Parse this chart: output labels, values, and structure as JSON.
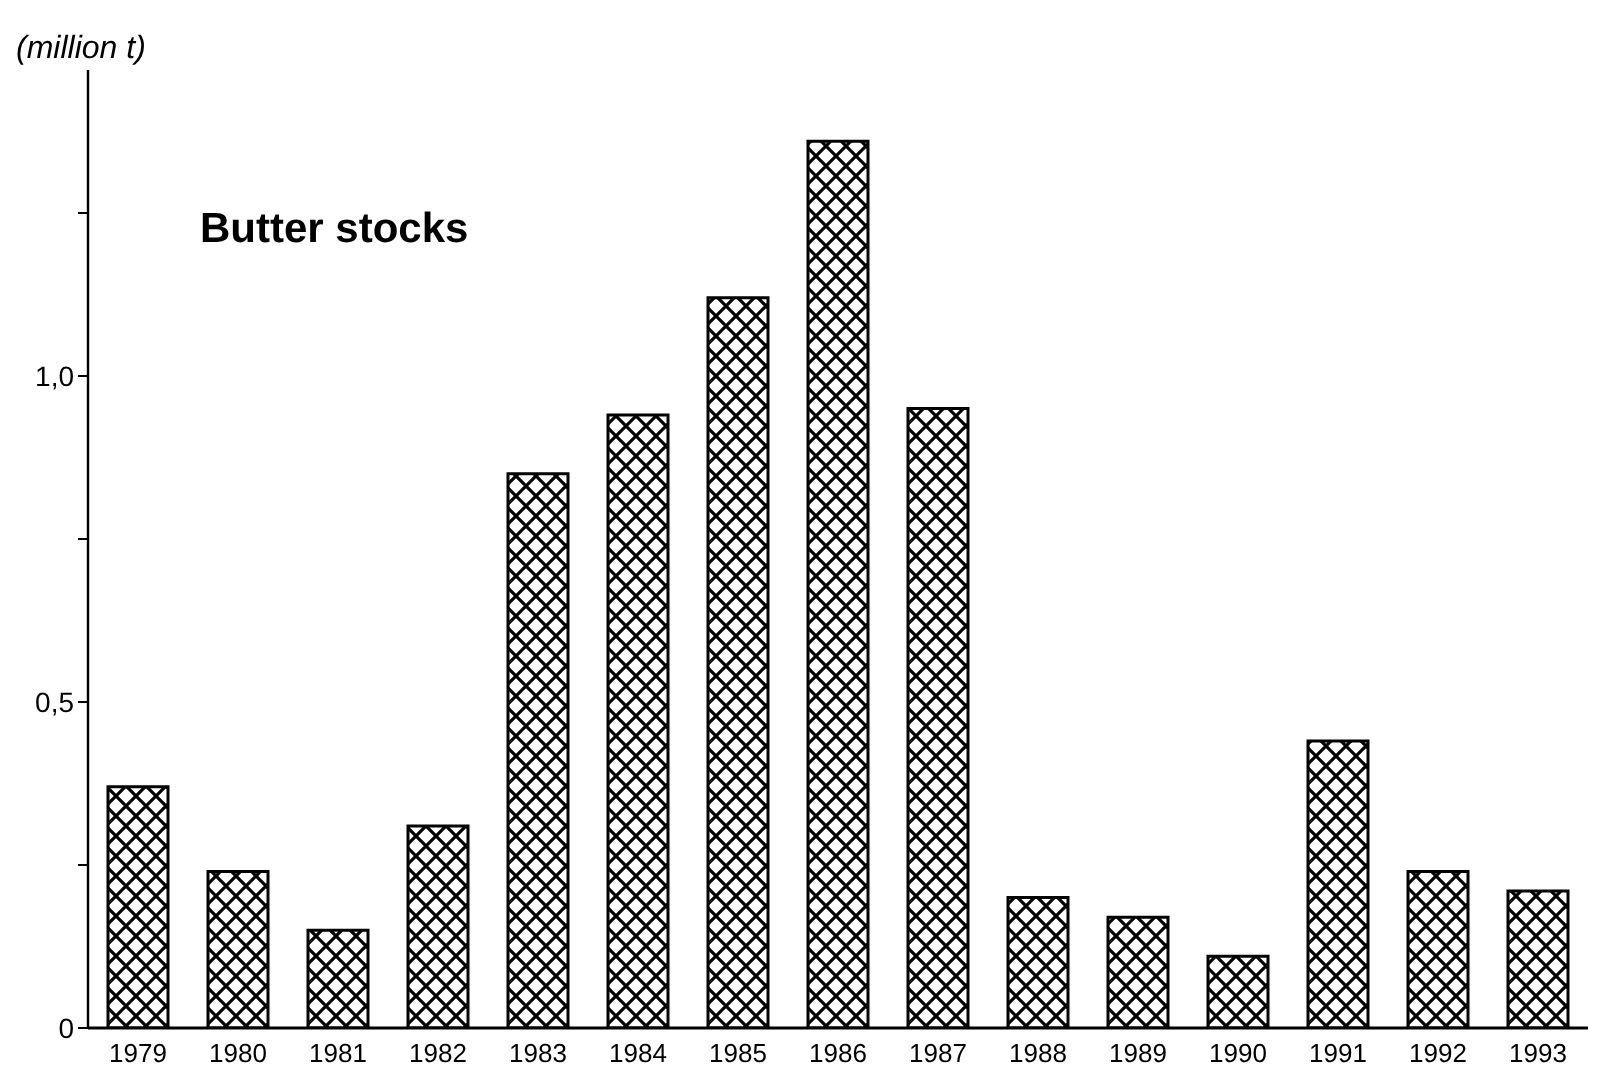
{
  "chart_data": {
    "type": "bar",
    "title": "Butter stocks",
    "ylabel": "(million t)",
    "categories": [
      "1979",
      "1980",
      "1981",
      "1982",
      "1983",
      "1984",
      "1985",
      "1986",
      "1987",
      "1988",
      "1989",
      "1990",
      "1991",
      "1992",
      "1993"
    ],
    "values": [
      0.37,
      0.24,
      0.15,
      0.31,
      0.85,
      0.94,
      1.12,
      1.36,
      0.95,
      0.2,
      0.17,
      0.11,
      0.44,
      0.24,
      0.21
    ],
    "color": "#000000",
    "ylim": [
      0,
      1.5
    ],
    "yticks": [
      0,
      {
        "value": 0.25,
        "label": null
      },
      {
        "value": 0.5,
        "label": "0,5"
      },
      {
        "value": 0.75,
        "label": null
      },
      {
        "value": 1,
        "label": "1,0"
      },
      {
        "value": 1.25,
        "label": null
      }
    ],
    "grid": false,
    "legend": false
  }
}
